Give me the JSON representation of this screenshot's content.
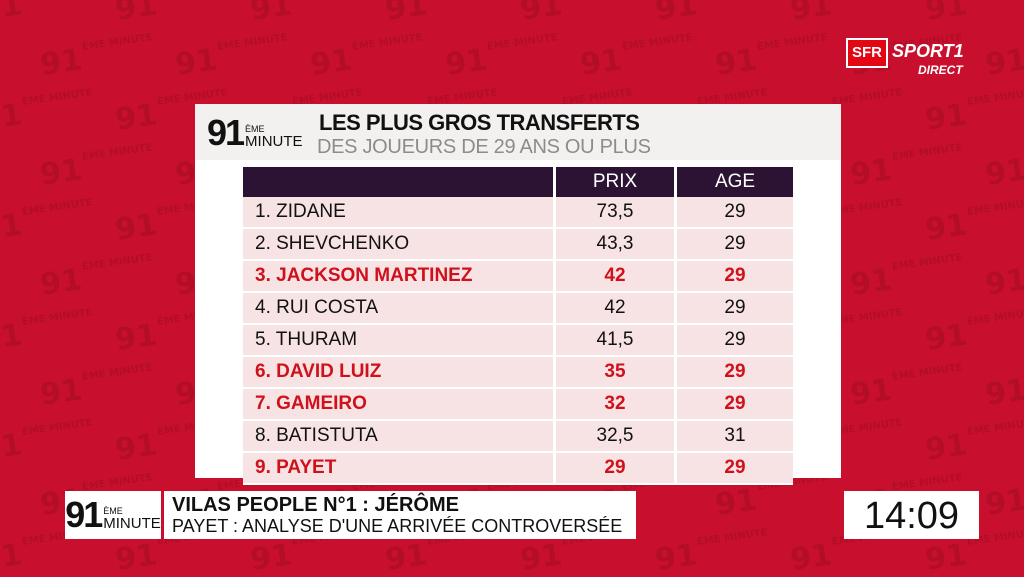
{
  "background": {
    "watermark_num": "91",
    "watermark_label": "ÈME MINUTE"
  },
  "channel": {
    "sfr": "SFR",
    "sport": "SPORT1",
    "live": "DIRECT"
  },
  "panel": {
    "brand_num": "91",
    "brand_eme": "ÈME",
    "brand_minute": "MINUTE",
    "title": "LES PLUS GROS TRANSFERTS",
    "subtitle": "DES JOUEURS DE 29 ANS OU PLUS",
    "columns": [
      "",
      "PRIX",
      "AGE"
    ],
    "rows": [
      {
        "name": "1. ZIDANE",
        "prix": "73,5",
        "age": "29",
        "highlight": false
      },
      {
        "name": "2. SHEVCHENKO",
        "prix": "43,3",
        "age": "29",
        "highlight": false
      },
      {
        "name": "3. JACKSON MARTINEZ",
        "prix": "42",
        "age": "29",
        "highlight": true
      },
      {
        "name": "4. RUI COSTA",
        "prix": "42",
        "age": "29",
        "highlight": false
      },
      {
        "name": "5. THURAM",
        "prix": "41,5",
        "age": "29",
        "highlight": false
      },
      {
        "name": "6. DAVID LUIZ",
        "prix": "35",
        "age": "29",
        "highlight": true
      },
      {
        "name": "7. GAMEIRO",
        "prix": "32",
        "age": "29",
        "highlight": true
      },
      {
        "name": "8. BATISTUTA",
        "prix": "32,5",
        "age": "31",
        "highlight": false
      },
      {
        "name": "9. PAYET",
        "prix": "29",
        "age": "29",
        "highlight": true
      }
    ],
    "highlight_color": "#d0111b"
  },
  "lower_third": {
    "logo_num": "91",
    "logo_eme": "ÈME",
    "logo_minute": "MINUTE",
    "line1": "VILAS PEOPLE N°1 : JÉRÔME",
    "line2": "PAYET : ANALYSE D'UNE ARRIVÉE CONTROVERSÉE"
  },
  "clock": "14:09"
}
